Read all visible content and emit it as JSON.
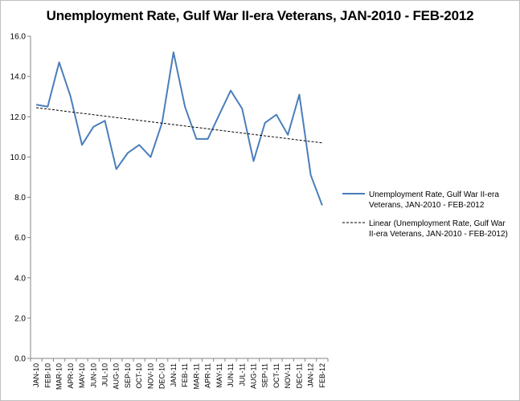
{
  "chart_data": {
    "type": "line",
    "title": "Unemployment Rate, Gulf War II-era Veterans, JAN-2010 - FEB-2012",
    "xlabel": "",
    "ylabel": "",
    "ylim": [
      0,
      16
    ],
    "yticks": [
      "0.0",
      "2.0",
      "4.0",
      "6.0",
      "8.0",
      "10.0",
      "12.0",
      "14.0",
      "16.0"
    ],
    "grid": false,
    "legend_position": "right",
    "categories": [
      "JAN-10",
      "FEB-10",
      "MAR-10",
      "APR-10",
      "MAY-10",
      "JUN-10",
      "JUL-10",
      "AUG-10",
      "SEP-10",
      "OCT-10",
      "NOV-10",
      "DEC-10",
      "JAN-11",
      "FEB-11",
      "MAR-11",
      "APR-11",
      "MAY-11",
      "JUN-11",
      "JUL-11",
      "AUG-11",
      "SEP-11",
      "OCT-11",
      "NOV-11",
      "DEC-11",
      "JAN-12",
      "FEB-12"
    ],
    "series": [
      {
        "name": "Unemployment Rate, Gulf War II-era Veterans, JAN-2010 - FEB-2012",
        "legend_lines": [
          "Unemployment Rate, Gulf War II-era",
          "Veterans, JAN-2010 - FEB-2012"
        ],
        "color": "#4a7ebb",
        "style": "solid",
        "values": [
          12.6,
          12.5,
          14.7,
          13.0,
          10.6,
          11.5,
          11.8,
          9.4,
          10.2,
          10.6,
          10.0,
          11.7,
          15.2,
          12.5,
          10.9,
          10.9,
          12.1,
          13.3,
          12.4,
          9.8,
          11.7,
          12.1,
          11.1,
          13.1,
          9.1,
          7.6
        ]
      },
      {
        "name": "Linear (Unemployment Rate, Gulf War II-era Veterans, JAN-2010 - FEB-2012)",
        "legend_lines": [
          "Linear (Unemployment Rate, Gulf War",
          "II-era Veterans, JAN-2010 - FEB-2012)"
        ],
        "color": "#000000",
        "style": "dashed",
        "values": [
          12.45,
          12.38,
          12.31,
          12.24,
          12.17,
          12.1,
          12.03,
          11.96,
          11.89,
          11.82,
          11.75,
          11.68,
          11.61,
          11.54,
          11.47,
          11.4,
          11.33,
          11.26,
          11.19,
          11.12,
          11.05,
          10.98,
          10.91,
          10.84,
          10.77,
          10.7
        ]
      }
    ]
  }
}
